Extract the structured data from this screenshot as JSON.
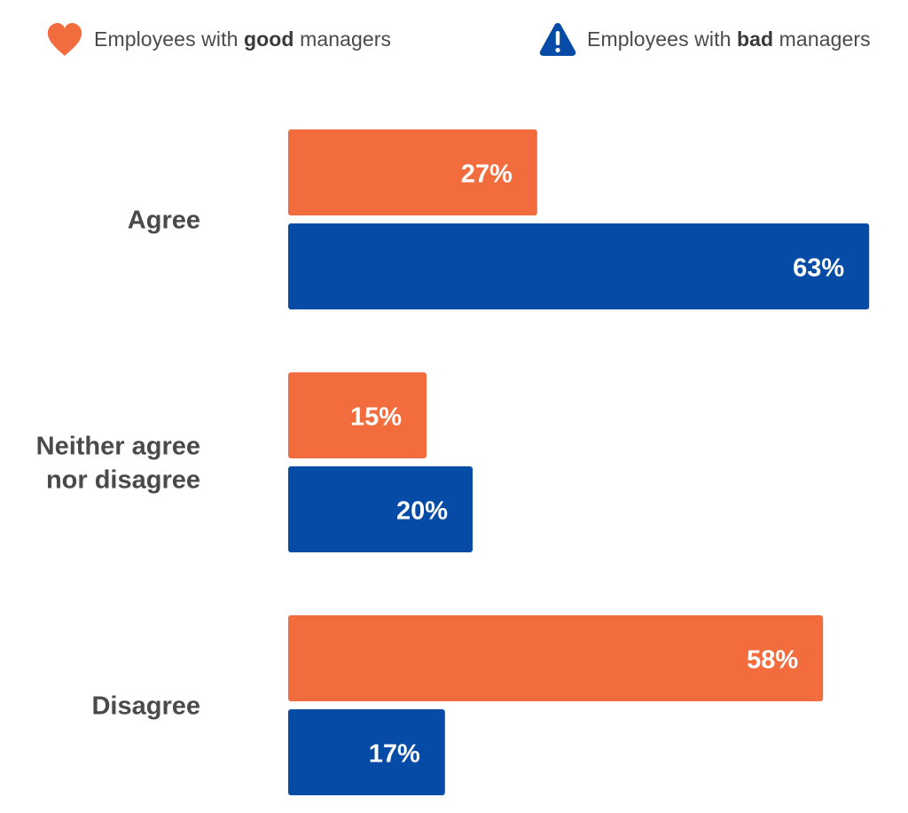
{
  "legend": {
    "good": {
      "prefix": "Employees with ",
      "emphasis": "good",
      "suffix": " managers",
      "icon": "heart-icon",
      "color": "#f26c3e"
    },
    "bad": {
      "prefix": "Employees with ",
      "emphasis": "bad",
      "suffix": " managers",
      "icon": "warning-triangle-icon",
      "color": "#064ba6"
    }
  },
  "chart_data": {
    "type": "bar",
    "orientation": "horizontal",
    "categories": [
      [
        "Agree"
      ],
      [
        "Neither agree",
        "nor disagree"
      ],
      [
        "Disagree"
      ]
    ],
    "series": [
      {
        "name": "Employees with good managers",
        "values": [
          27,
          15,
          58
        ],
        "labels": [
          "27%",
          "15%",
          "58%"
        ],
        "color": "#f26c3e"
      },
      {
        "name": "Employees with bad managers",
        "values": [
          63,
          20,
          17
        ],
        "labels": [
          "63%",
          "20%",
          "17%"
        ],
        "color": "#064ba6"
      }
    ],
    "unit": "%",
    "grid": false,
    "legend_position": "top"
  }
}
